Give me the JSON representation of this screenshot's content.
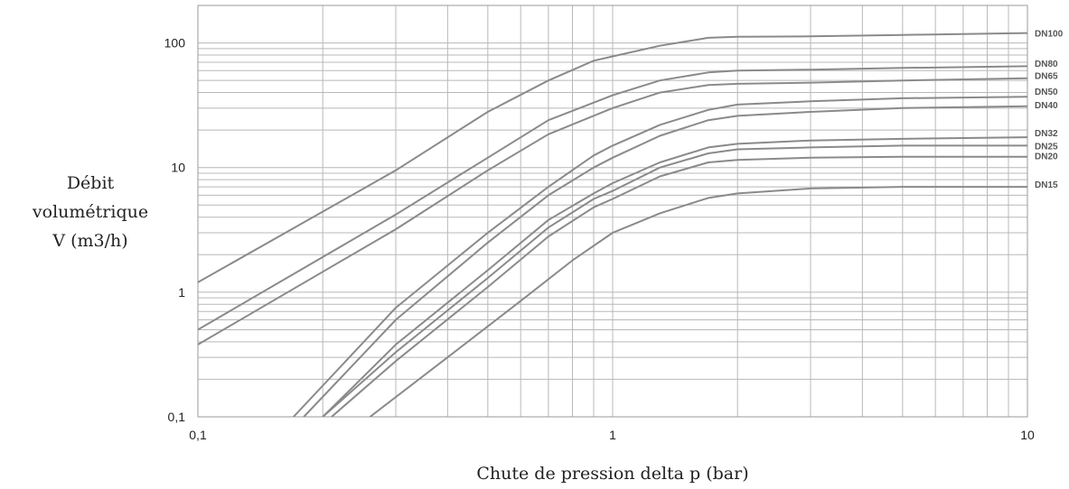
{
  "chart_data": {
    "type": "line",
    "xscale": "log",
    "yscale": "log",
    "xlim": [
      0.1,
      10
    ],
    "ylim": [
      0.1,
      200
    ],
    "grid": true,
    "xlabel": "Chute de pression delta p (bar)",
    "ylabel": [
      "Débit",
      "volumétrique",
      "V (m3/h)"
    ],
    "xticks": [
      {
        "value": 0.1,
        "label": "0,1"
      },
      {
        "value": 1,
        "label": "1"
      },
      {
        "value": 10,
        "label": "10"
      }
    ],
    "yticks": [
      {
        "value": 0.1,
        "label": "0,1"
      },
      {
        "value": 1,
        "label": "1"
      },
      {
        "value": 10,
        "label": "10"
      },
      {
        "value": 100,
        "label": "100"
      }
    ],
    "series": [
      {
        "name": "DN100",
        "label_y": 120,
        "x": [
          0.1,
          0.3,
          0.5,
          0.7,
          0.9,
          1.0,
          1.3,
          1.7,
          2,
          3,
          5,
          10
        ],
        "y": [
          1.2,
          9.5,
          28,
          50,
          72,
          78,
          95,
          110,
          112,
          113,
          116,
          120
        ]
      },
      {
        "name": "DN80",
        "label_y": 69,
        "x": [
          0.1,
          0.3,
          0.5,
          0.7,
          1.0,
          1.3,
          1.7,
          2,
          3,
          5,
          10
        ],
        "y": [
          0.5,
          4.2,
          12,
          24,
          38,
          50,
          58,
          60,
          61,
          63,
          65
        ]
      },
      {
        "name": "DN65",
        "label_y": 55,
        "x": [
          0.1,
          0.3,
          0.5,
          0.7,
          1.0,
          1.3,
          1.7,
          2,
          3,
          5,
          10
        ],
        "y": [
          0.38,
          3.2,
          9.5,
          18.5,
          30,
          40,
          46,
          47,
          48,
          50,
          52
        ]
      },
      {
        "name": "DN50",
        "label_y": 41,
        "x": [
          0.17,
          0.3,
          0.5,
          0.7,
          0.9,
          1.0,
          1.3,
          1.7,
          2,
          3,
          5,
          10
        ],
        "y": [
          0.1,
          0.75,
          3,
          7,
          12.5,
          15,
          22,
          29,
          32,
          34,
          36,
          37
        ]
      },
      {
        "name": "DN40",
        "label_y": 32,
        "x": [
          0.18,
          0.3,
          0.5,
          0.7,
          0.9,
          1.0,
          1.3,
          1.7,
          2,
          3,
          5,
          10
        ],
        "y": [
          0.1,
          0.6,
          2.5,
          6,
          10,
          12,
          18,
          24,
          26,
          28,
          30,
          31
        ]
      },
      {
        "name": "DN32",
        "label_y": 19,
        "x": [
          0.2,
          0.3,
          0.5,
          0.7,
          0.9,
          1.0,
          1.3,
          1.7,
          2,
          3,
          5,
          10
        ],
        "y": [
          0.1,
          0.38,
          1.5,
          3.8,
          6.2,
          7.5,
          11,
          14.5,
          15.5,
          16.5,
          17,
          17.5
        ]
      },
      {
        "name": "DN25",
        "label_y": 15,
        "x": [
          0.2,
          0.3,
          0.5,
          0.7,
          0.9,
          1.0,
          1.3,
          1.7,
          2,
          3,
          5,
          10
        ],
        "y": [
          0.1,
          0.33,
          1.3,
          3.3,
          5.6,
          6.5,
          10,
          13,
          14,
          14.5,
          15,
          15
        ]
      },
      {
        "name": "DN20",
        "label_y": 12.5,
        "x": [
          0.21,
          0.3,
          0.5,
          0.7,
          0.9,
          1.0,
          1.3,
          1.7,
          2,
          3,
          5,
          10
        ],
        "y": [
          0.1,
          0.28,
          1.1,
          2.8,
          4.8,
          5.6,
          8.5,
          11,
          11.5,
          12,
          12.2,
          12.2
        ]
      },
      {
        "name": "DN15",
        "label_y": 7.4,
        "x": [
          0.26,
          0.4,
          0.6,
          0.8,
          1.0,
          1.3,
          1.7,
          2,
          3,
          5,
          10
        ],
        "y": [
          0.1,
          0.3,
          0.85,
          1.8,
          3,
          4.3,
          5.7,
          6.2,
          6.8,
          7,
          7
        ]
      }
    ]
  }
}
